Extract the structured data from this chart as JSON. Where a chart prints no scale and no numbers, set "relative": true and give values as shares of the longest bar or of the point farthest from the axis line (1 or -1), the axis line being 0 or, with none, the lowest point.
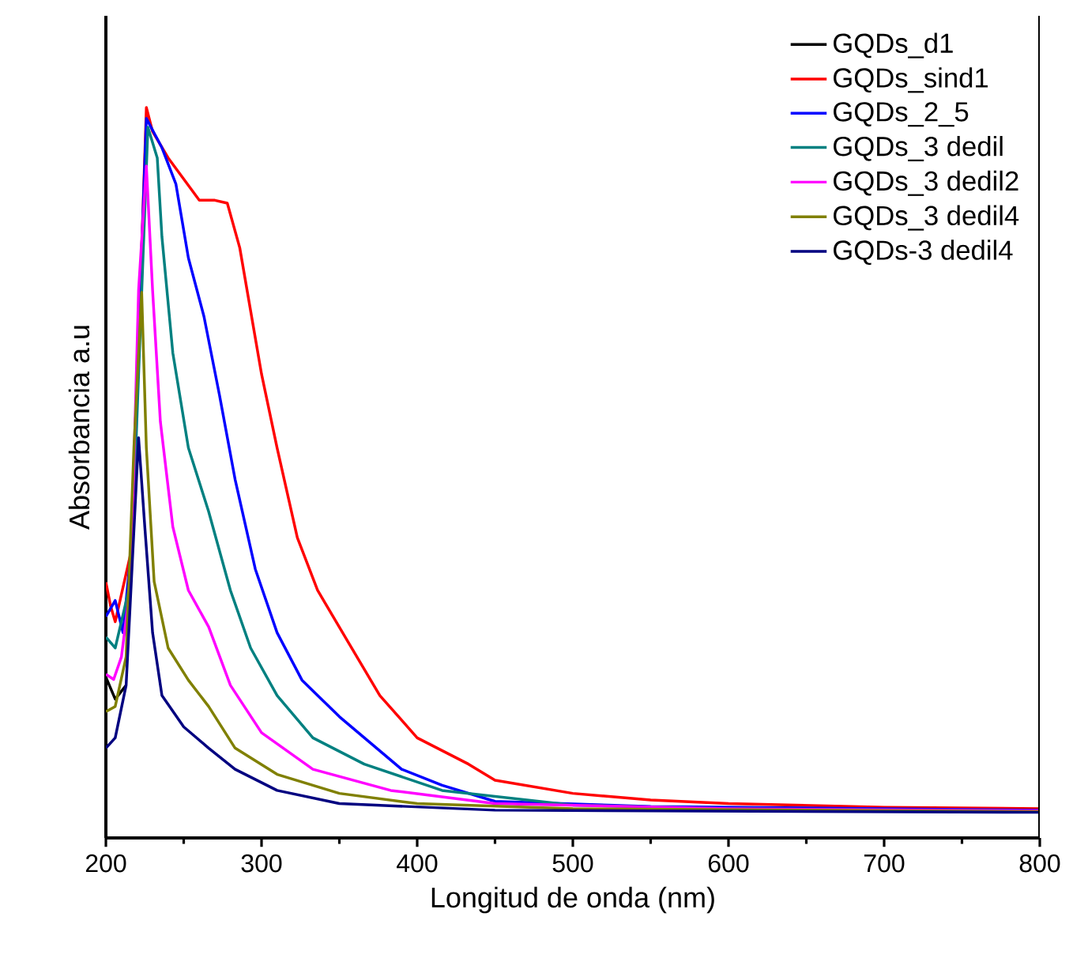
{
  "chart_data": {
    "type": "line",
    "xlabel": "Longitud de onda (nm)",
    "ylabel": "Absorbancia a.u",
    "relative": true,
    "xlim": [
      200,
      800
    ],
    "xticks": [
      200,
      300,
      400,
      500,
      600,
      700,
      800
    ],
    "legend": "top right",
    "marker": "none",
    "line_style": "solid",
    "series": [
      {
        "name": "GQDs_d1",
        "color": "#000000",
        "x": [
          200,
          206,
          213
        ],
        "values": [
          0.22,
          0.19,
          0.209
        ]
      },
      {
        "name": "GQDs_sind1",
        "color": "#ff0000",
        "x": [
          200,
          203,
          206,
          216,
          221,
          226,
          230,
          240,
          250,
          260,
          270,
          278,
          286,
          300,
          310,
          323,
          336,
          356,
          376,
          400,
          433,
          450,
          500,
          550,
          600,
          700,
          800
        ],
        "values": [
          0.35,
          0.318,
          0.296,
          0.39,
          0.678,
          1.0,
          0.967,
          0.931,
          0.902,
          0.873,
          0.873,
          0.869,
          0.808,
          0.635,
          0.534,
          0.411,
          0.339,
          0.267,
          0.195,
          0.137,
          0.101,
          0.079,
          0.061,
          0.052,
          0.047,
          0.042,
          0.04
        ]
      },
      {
        "name": "GQDs_2_5",
        "color": "#0000ff",
        "x": [
          200,
          206,
          211,
          216,
          226,
          236,
          245,
          253,
          263,
          273,
          283,
          296,
          310,
          326,
          350,
          370,
          390,
          416,
          450,
          550,
          800
        ],
        "values": [
          0.303,
          0.325,
          0.281,
          0.39,
          0.985,
          0.945,
          0.895,
          0.794,
          0.714,
          0.606,
          0.491,
          0.368,
          0.281,
          0.216,
          0.166,
          0.13,
          0.094,
          0.072,
          0.05,
          0.043,
          0.038
        ]
      },
      {
        "name": "GQDs_3 dedil",
        "color": "#008080",
        "x": [
          200,
          206,
          216,
          227,
          233,
          236,
          243,
          253,
          266,
          280,
          293,
          310,
          333,
          366,
          416,
          500,
          600,
          800
        ],
        "values": [
          0.275,
          0.26,
          0.351,
          0.973,
          0.931,
          0.823,
          0.664,
          0.534,
          0.447,
          0.339,
          0.26,
          0.195,
          0.137,
          0.101,
          0.065,
          0.045,
          0.04,
          0.037
        ]
      },
      {
        "name": "GQDs_3 dedil2",
        "color": "#ff00ff",
        "x": [
          200,
          205,
          210,
          216,
          221,
          226,
          230,
          235,
          243,
          253,
          266,
          280,
          300,
          333,
          383,
          450,
          600,
          800
        ],
        "values": [
          0.224,
          0.217,
          0.248,
          0.351,
          0.75,
          0.92,
          0.75,
          0.57,
          0.426,
          0.339,
          0.289,
          0.209,
          0.144,
          0.094,
          0.065,
          0.047,
          0.04,
          0.037
        ]
      },
      {
        "name": "GQDs_3 dedil4",
        "color": "#808000",
        "x": [
          200,
          206,
          213,
          218,
          223,
          226,
          231,
          240,
          253,
          266,
          283,
          310,
          350,
          400,
          500,
          800
        ],
        "values": [
          0.173,
          0.18,
          0.248,
          0.534,
          0.747,
          0.534,
          0.351,
          0.26,
          0.216,
          0.18,
          0.123,
          0.087,
          0.061,
          0.047,
          0.04,
          0.036
        ]
      },
      {
        "name": "GQDs-3 dedil4",
        "color": "#000080",
        "x": [
          200,
          206,
          213,
          221,
          225,
          230,
          236,
          250,
          266,
          283,
          310,
          350,
          450,
          800
        ],
        "values": [
          0.123,
          0.137,
          0.209,
          0.548,
          0.426,
          0.281,
          0.195,
          0.152,
          0.123,
          0.094,
          0.065,
          0.047,
          0.038,
          0.035
        ]
      }
    ]
  }
}
